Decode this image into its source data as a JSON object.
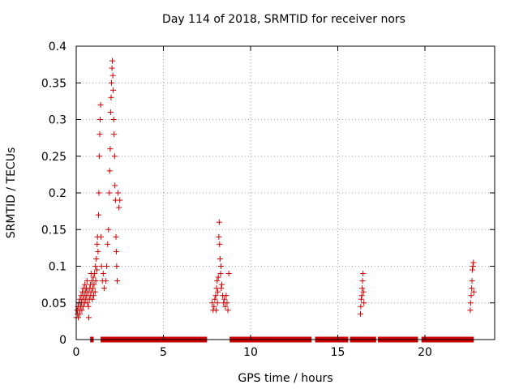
{
  "chart_data": {
    "type": "scatter",
    "title": "Day 114 of 2018, SRMTID for receiver nors",
    "xlabel": "GPS time / hours",
    "ylabel": "SRMTID / TECUs",
    "xlim": [
      0,
      24
    ],
    "ylim": [
      0,
      0.4
    ],
    "xticks": [
      0,
      5,
      10,
      15,
      20
    ],
    "yticks": [
      0,
      0.05,
      0.1,
      0.15,
      0.2,
      0.25,
      0.3,
      0.35,
      0.4
    ],
    "ytick_labels": [
      "0",
      "0.05",
      "0.1",
      "0.15",
      "0.2",
      "0.25",
      "0.3",
      "0.35",
      "0.4"
    ],
    "grid": true,
    "marker": "+",
    "color": "#cc0000",
    "points": [
      [
        0.0,
        0.03
      ],
      [
        0.05,
        0.04
      ],
      [
        0.08,
        0.035
      ],
      [
        0.1,
        0.045
      ],
      [
        0.12,
        0.03
      ],
      [
        0.15,
        0.05
      ],
      [
        0.18,
        0.04
      ],
      [
        0.2,
        0.035
      ],
      [
        0.22,
        0.055
      ],
      [
        0.25,
        0.045
      ],
      [
        0.28,
        0.06
      ],
      [
        0.3,
        0.05
      ],
      [
        0.32,
        0.04
      ],
      [
        0.35,
        0.065
      ],
      [
        0.38,
        0.055
      ],
      [
        0.4,
        0.045
      ],
      [
        0.42,
        0.07
      ],
      [
        0.45,
        0.06
      ],
      [
        0.48,
        0.05
      ],
      [
        0.5,
        0.075
      ],
      [
        0.52,
        0.065
      ],
      [
        0.55,
        0.055
      ],
      [
        0.58,
        0.07
      ],
      [
        0.6,
        0.06
      ],
      [
        0.62,
        0.08
      ],
      [
        0.65,
        0.05
      ],
      [
        0.68,
        0.065
      ],
      [
        0.7,
        0.045
      ],
      [
        0.72,
        0.03
      ],
      [
        0.75,
        0.055
      ],
      [
        0.78,
        0.07
      ],
      [
        0.8,
        0.06
      ],
      [
        0.82,
        0.075
      ],
      [
        0.85,
        0.09
      ],
      [
        0.88,
        0.065
      ],
      [
        0.9,
        0.08
      ],
      [
        0.92,
        0.055
      ],
      [
        0.95,
        0.07
      ],
      [
        0.98,
        0.085
      ],
      [
        1.0,
        0.06
      ],
      [
        1.02,
        0.075
      ],
      [
        1.05,
        0.09
      ],
      [
        1.08,
        0.065
      ],
      [
        1.1,
        0.1
      ],
      [
        1.12,
        0.08
      ],
      [
        1.15,
        0.11
      ],
      [
        1.18,
        0.095
      ],
      [
        1.2,
        0.13
      ],
      [
        1.22,
        0.14
      ],
      [
        1.25,
        0.12
      ],
      [
        1.28,
        0.17
      ],
      [
        1.3,
        0.2
      ],
      [
        1.32,
        0.25
      ],
      [
        1.35,
        0.28
      ],
      [
        1.37,
        0.3
      ],
      [
        1.4,
        0.32
      ],
      [
        1.42,
        0.14
      ],
      [
        1.45,
        0.1
      ],
      [
        1.5,
        0.08
      ],
      [
        1.55,
        0.09
      ],
      [
        1.6,
        0.07
      ],
      [
        1.7,
        0.08
      ],
      [
        1.75,
        0.1
      ],
      [
        1.8,
        0.13
      ],
      [
        1.85,
        0.15
      ],
      [
        1.9,
        0.2
      ],
      [
        1.92,
        0.23
      ],
      [
        1.95,
        0.26
      ],
      [
        1.97,
        0.31
      ],
      [
        2.0,
        0.33
      ],
      [
        2.02,
        0.35
      ],
      [
        2.05,
        0.37
      ],
      [
        2.07,
        0.38
      ],
      [
        2.1,
        0.36
      ],
      [
        2.12,
        0.34
      ],
      [
        2.15,
        0.3
      ],
      [
        2.17,
        0.28
      ],
      [
        2.2,
        0.25
      ],
      [
        2.22,
        0.21
      ],
      [
        2.25,
        0.19
      ],
      [
        2.28,
        0.14
      ],
      [
        2.3,
        0.12
      ],
      [
        2.32,
        0.1
      ],
      [
        2.35,
        0.08
      ],
      [
        2.4,
        0.2
      ],
      [
        2.45,
        0.18
      ],
      [
        2.5,
        0.19
      ],
      [
        7.8,
        0.05
      ],
      [
        7.85,
        0.04
      ],
      [
        7.9,
        0.045
      ],
      [
        7.95,
        0.055
      ],
      [
        8.0,
        0.06
      ],
      [
        8.02,
        0.04
      ],
      [
        8.05,
        0.07
      ],
      [
        8.08,
        0.08
      ],
      [
        8.1,
        0.05
      ],
      [
        8.12,
        0.065
      ],
      [
        8.15,
        0.085
      ],
      [
        8.18,
        0.14
      ],
      [
        8.2,
        0.16
      ],
      [
        8.22,
        0.13
      ],
      [
        8.25,
        0.11
      ],
      [
        8.28,
        0.09
      ],
      [
        8.3,
        0.1
      ],
      [
        8.32,
        0.07
      ],
      [
        8.35,
        0.075
      ],
      [
        8.4,
        0.06
      ],
      [
        8.45,
        0.05
      ],
      [
        8.5,
        0.055
      ],
      [
        8.55,
        0.045
      ],
      [
        8.6,
        0.06
      ],
      [
        8.65,
        0.05
      ],
      [
        8.7,
        0.04
      ],
      [
        8.75,
        0.09
      ],
      [
        16.3,
        0.035
      ],
      [
        16.32,
        0.045
      ],
      [
        16.35,
        0.055
      ],
      [
        16.38,
        0.06
      ],
      [
        16.4,
        0.07
      ],
      [
        16.42,
        0.08
      ],
      [
        16.45,
        0.09
      ],
      [
        16.47,
        0.065
      ],
      [
        16.5,
        0.05
      ],
      [
        22.6,
        0.04
      ],
      [
        22.62,
        0.05
      ],
      [
        22.65,
        0.06
      ],
      [
        22.68,
        0.07
      ],
      [
        22.7,
        0.08
      ],
      [
        22.72,
        0.095
      ],
      [
        22.75,
        0.1
      ],
      [
        22.78,
        0.105
      ],
      [
        22.8,
        0.065
      ]
    ],
    "zero_bands": [
      [
        0.8,
        1.0
      ],
      [
        1.4,
        7.5
      ],
      [
        8.8,
        13.5
      ],
      [
        13.7,
        15.6
      ],
      [
        15.7,
        17.2
      ],
      [
        17.3,
        19.6
      ],
      [
        19.8,
        22.8
      ]
    ]
  }
}
